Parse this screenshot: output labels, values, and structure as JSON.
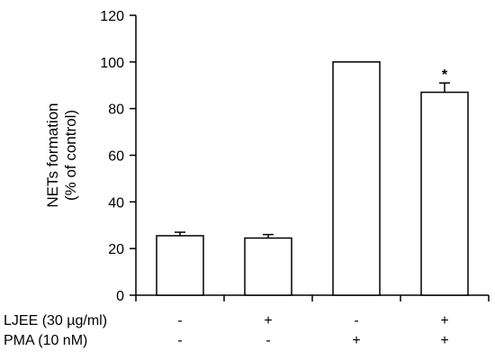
{
  "chart_data": {
    "type": "bar",
    "ylabel_line1": "NETs formation",
    "ylabel_line2": "(% of control)",
    "ylim": [
      0,
      120
    ],
    "yticks": [
      0,
      20,
      40,
      60,
      80,
      100,
      120
    ],
    "grid": false,
    "values": [
      25.5,
      24.5,
      100,
      87
    ],
    "errors": [
      1.5,
      1.5,
      0,
      4
    ],
    "annotations": [
      "",
      "",
      "",
      "*"
    ],
    "conditions": [
      {
        "label": "LJEE (30 µg/ml)",
        "signs": [
          "-",
          "+",
          "-",
          "+"
        ]
      },
      {
        "label": "PMA (10 nM)",
        "signs": [
          "-",
          "-",
          "+",
          "+"
        ]
      }
    ],
    "bar_color": "#ffffff",
    "edge_color": "#000000"
  }
}
